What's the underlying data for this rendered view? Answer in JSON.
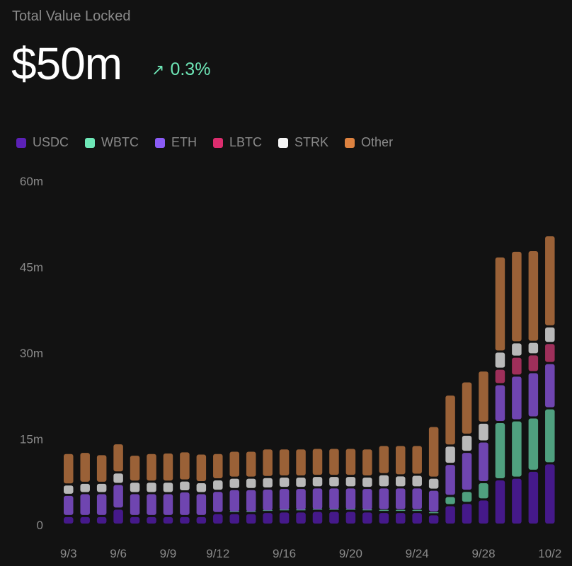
{
  "header": {
    "title": "Total Value Locked",
    "value": "$50m",
    "change_icon": "arrow-up-right-icon",
    "change_arrow": "↗",
    "change": "0.3%",
    "change_color": "#6ee7b7"
  },
  "legend": [
    {
      "label": "USDC",
      "color": "#5b21b6"
    },
    {
      "label": "WBTC",
      "color": "#6ee7b7"
    },
    {
      "label": "ETH",
      "color": "#8b5cf6"
    },
    {
      "label": "LBTC",
      "color": "#db2d6e"
    },
    {
      "label": "STRK",
      "color": "#f5f5f5"
    },
    {
      "label": "Other",
      "color": "#dd8240"
    }
  ],
  "chart_data": {
    "type": "bar",
    "stacked": true,
    "title": "Total Value Locked",
    "xlabel": "",
    "ylabel": "",
    "ylim": [
      0,
      60
    ],
    "y_unit": "m",
    "yticks": [
      0,
      15,
      30,
      45,
      60
    ],
    "ytick_labels": [
      "0",
      "15m",
      "30m",
      "45m",
      "60m"
    ],
    "grid": false,
    "legend_position": "top-left",
    "categories": [
      "9/3",
      "9/4",
      "9/5",
      "9/6",
      "9/7",
      "9/8",
      "9/9",
      "9/10",
      "9/11",
      "9/12",
      "9/13",
      "9/14",
      "9/15",
      "9/16",
      "9/17",
      "9/18",
      "9/19",
      "9/20",
      "9/21",
      "9/22",
      "9/23",
      "9/24",
      "9/25",
      "9/26",
      "9/27",
      "9/28",
      "9/29",
      "9/30",
      "10/1",
      "10/2"
    ],
    "xtick_labels": [
      "9/3",
      "9/6",
      "9/9",
      "9/12",
      "9/16",
      "9/20",
      "9/24",
      "9/28",
      "10/2"
    ],
    "series": [
      {
        "name": "USDC",
        "color": "#45198a",
        "values": [
          1.5,
          1.5,
          1.5,
          2.8,
          1.5,
          1.5,
          1.5,
          1.5,
          1.5,
          2.0,
          2.0,
          2.0,
          2.2,
          2.3,
          2.3,
          2.4,
          2.4,
          2.4,
          2.3,
          2.2,
          2.2,
          2.2,
          1.8,
          3.4,
          3.8,
          4.4,
          7.9,
          8.2,
          9.4,
          10.7
        ]
      },
      {
        "name": "WBTC",
        "color": "#4fa07f",
        "values": [
          0,
          0,
          0,
          0,
          0,
          0,
          0,
          0,
          0,
          0,
          0.1,
          0.1,
          0.1,
          0.1,
          0.1,
          0.1,
          0.1,
          0.1,
          0.1,
          0.3,
          0.3,
          0.3,
          0.3,
          1.6,
          2.1,
          3.0,
          10.0,
          10.0,
          9.3,
          9.6
        ]
      },
      {
        "name": "ETH",
        "color": "#6f45b0",
        "values": [
          3.7,
          4.0,
          4.0,
          4.3,
          4.0,
          4.0,
          4.0,
          4.3,
          4.0,
          3.9,
          4.1,
          4.1,
          4.0,
          4.0,
          4.0,
          4.0,
          4.0,
          4.0,
          4.0,
          4.0,
          4.0,
          4.0,
          4.0,
          5.6,
          6.8,
          7.1,
          6.6,
          7.8,
          7.9,
          7.9
        ]
      },
      {
        "name": "LBTC",
        "color": "#9e2f5a",
        "values": [
          0,
          0,
          0,
          0,
          0,
          0,
          0,
          0,
          0,
          0,
          0,
          0,
          0,
          0,
          0,
          0,
          0,
          0,
          0,
          0,
          0,
          0,
          0,
          0,
          0,
          0,
          2.7,
          3.3,
          3.1,
          3.5
        ]
      },
      {
        "name": "STRK",
        "color": "#b9b9b9",
        "values": [
          1.8,
          1.8,
          1.8,
          2.0,
          2.0,
          2.0,
          2.0,
          1.9,
          1.9,
          2.0,
          2.0,
          2.0,
          2.0,
          2.0,
          2.0,
          2.0,
          2.0,
          2.0,
          2.0,
          2.3,
          2.1,
          2.2,
          2.1,
          3.2,
          3.0,
          3.3,
          3.0,
          2.5,
          2.2,
          2.9
        ]
      },
      {
        "name": "Other",
        "color": "#9a6137",
        "values": [
          5.5,
          5.4,
          5.0,
          5.1,
          4.7,
          5.0,
          5.1,
          5.1,
          5.0,
          4.6,
          4.7,
          4.7,
          5.0,
          4.9,
          4.9,
          4.9,
          4.9,
          4.9,
          4.9,
          5.1,
          5.3,
          5.2,
          9.0,
          8.9,
          9.3,
          9.1,
          16.6,
          16.0,
          16.0,
          15.9
        ]
      }
    ]
  }
}
